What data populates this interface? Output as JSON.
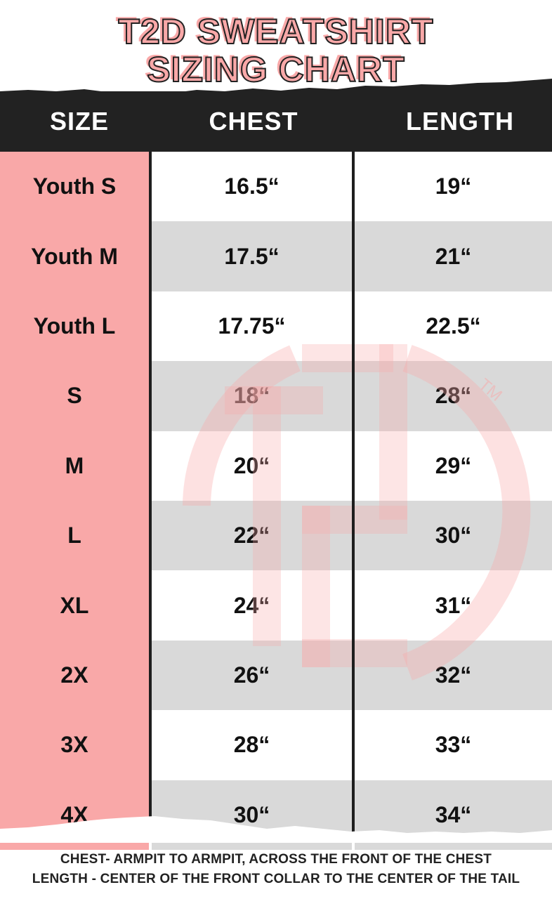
{
  "title": {
    "line1": "T2D SWEATSHIRT",
    "line2": "SIZING CHART"
  },
  "colors": {
    "accent": "#f9a8a8",
    "header_bg": "#222222",
    "stripe": "#d9d9d9"
  },
  "watermark": {
    "text": "T2D",
    "tm": "TM"
  },
  "table": {
    "headers": [
      "SIZE",
      "CHEST",
      "LENGTH"
    ],
    "rows": [
      {
        "size": "Youth S",
        "chest": "16.5“",
        "length": "19“"
      },
      {
        "size": "Youth M",
        "chest": "17.5“",
        "length": "21“"
      },
      {
        "size": "Youth L",
        "chest": "17.75“",
        "length": "22.5“"
      },
      {
        "size": "S",
        "chest": "18“",
        "length": "28“"
      },
      {
        "size": "M",
        "chest": "20“",
        "length": "29“"
      },
      {
        "size": "L",
        "chest": "22“",
        "length": "30“"
      },
      {
        "size": "XL",
        "chest": "24“",
        "length": "31“"
      },
      {
        "size": "2X",
        "chest": "26“",
        "length": "32“"
      },
      {
        "size": "3X",
        "chest": "28“",
        "length": "33“"
      },
      {
        "size": "4X",
        "chest": "30“",
        "length": "34“"
      }
    ]
  },
  "footnotes": [
    "CHEST- ARMPIT TO ARMPIT, ACROSS THE FRONT OF THE CHEST",
    "LENGTH - CENTER OF THE FRONT COLLAR TO THE CENTER OF THE TAIL"
  ]
}
